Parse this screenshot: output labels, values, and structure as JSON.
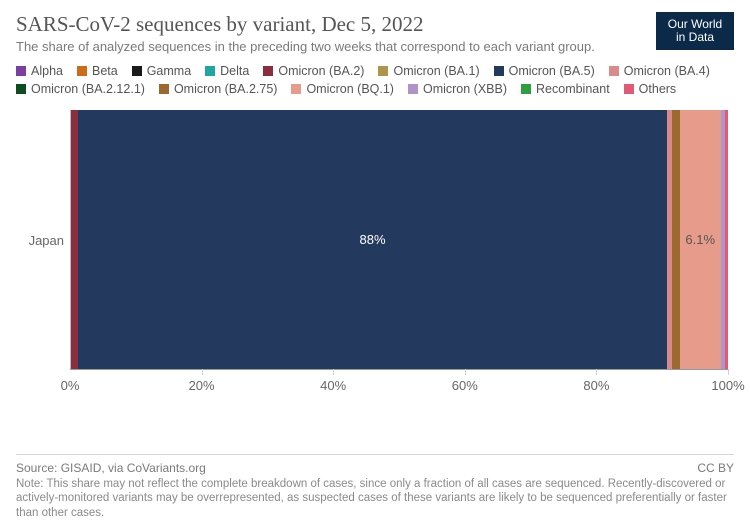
{
  "header": {
    "title": "SARS-CoV-2 sequences by variant, Dec 5, 2022",
    "subtitle": "The share of analyzed sequences in the preceding two weeks that correspond to each variant group.",
    "logo_line1": "Our World",
    "logo_line2": "in Data",
    "logo_bg": "#0b2a4a",
    "logo_fg": "#ffffff"
  },
  "legend": {
    "items": [
      {
        "label": "Alpha",
        "color": "#7b3fa0"
      },
      {
        "label": "Beta",
        "color": "#cc6b18"
      },
      {
        "label": "Gamma",
        "color": "#1a1a1a"
      },
      {
        "label": "Delta",
        "color": "#1fa6a0"
      },
      {
        "label": "Omicron (BA.2)",
        "color": "#8b2e3f"
      },
      {
        "label": "Omicron (BA.1)",
        "color": "#b1934a"
      },
      {
        "label": "Omicron (BA.5)",
        "color": "#23395d"
      },
      {
        "label": "Omicron (BA.4)",
        "color": "#d98b8b"
      },
      {
        "label": "Omicron (BA.2.12.1)",
        "color": "#0d4d1f"
      },
      {
        "label": "Omicron (BA.2.75)",
        "color": "#9c6a2f"
      },
      {
        "label": "Omicron (BQ.1)",
        "color": "#e79b8a"
      },
      {
        "label": "Omicron (XBB)",
        "color": "#b093c9"
      },
      {
        "label": "Recombinant",
        "color": "#2f9e3f"
      },
      {
        "label": "Others",
        "color": "#e05a75"
      }
    ]
  },
  "chart": {
    "type": "stacked-bar-horizontal",
    "xlim": [
      0,
      100
    ],
    "xtick_step": 20,
    "xtick_suffix": "%",
    "grid_color": "#cfcfcf",
    "axis_color": "#999999",
    "background_color": "#ffffff",
    "label_fontsize": 13,
    "value_fontsize": 13,
    "value_color_light": "#ffffff",
    "value_color_dark": "#555555",
    "categories": [
      "Japan"
    ],
    "rows": [
      {
        "label": "Japan",
        "segments": [
          {
            "variant": "Omicron (BA.2)",
            "value": 1.2,
            "color": "#8b2e3f",
            "show_label": false
          },
          {
            "variant": "Omicron (BA.5)",
            "value": 88.0,
            "color": "#23395d",
            "show_label": true,
            "label": "88%"
          },
          {
            "variant": "Omicron (BA.4)",
            "value": 0.7,
            "color": "#d98b8b",
            "show_label": false
          },
          {
            "variant": "Omicron (BA.2.75)",
            "value": 1.2,
            "color": "#9c6a2f",
            "show_label": false
          },
          {
            "variant": "Omicron (BQ.1)",
            "value": 6.1,
            "color": "#e79b8a",
            "show_label": true,
            "label": "6.1%",
            "label_color": "#555555"
          },
          {
            "variant": "Omicron (XBB)",
            "value": 0.6,
            "color": "#b093c9",
            "show_label": false
          },
          {
            "variant": "Others",
            "value": 0.5,
            "color": "#e05a75",
            "show_label": false
          }
        ]
      }
    ]
  },
  "footer": {
    "source": "Source: GISAID, via CoVariants.org",
    "license": "CC BY",
    "note": "Note: This share may not reflect the complete breakdown of cases, since only a fraction of all cases are sequenced. Recently-discovered or actively-monitored variants may be overrepresented, as suspected cases of these variants are likely to be sequenced preferentially or faster than other cases."
  }
}
